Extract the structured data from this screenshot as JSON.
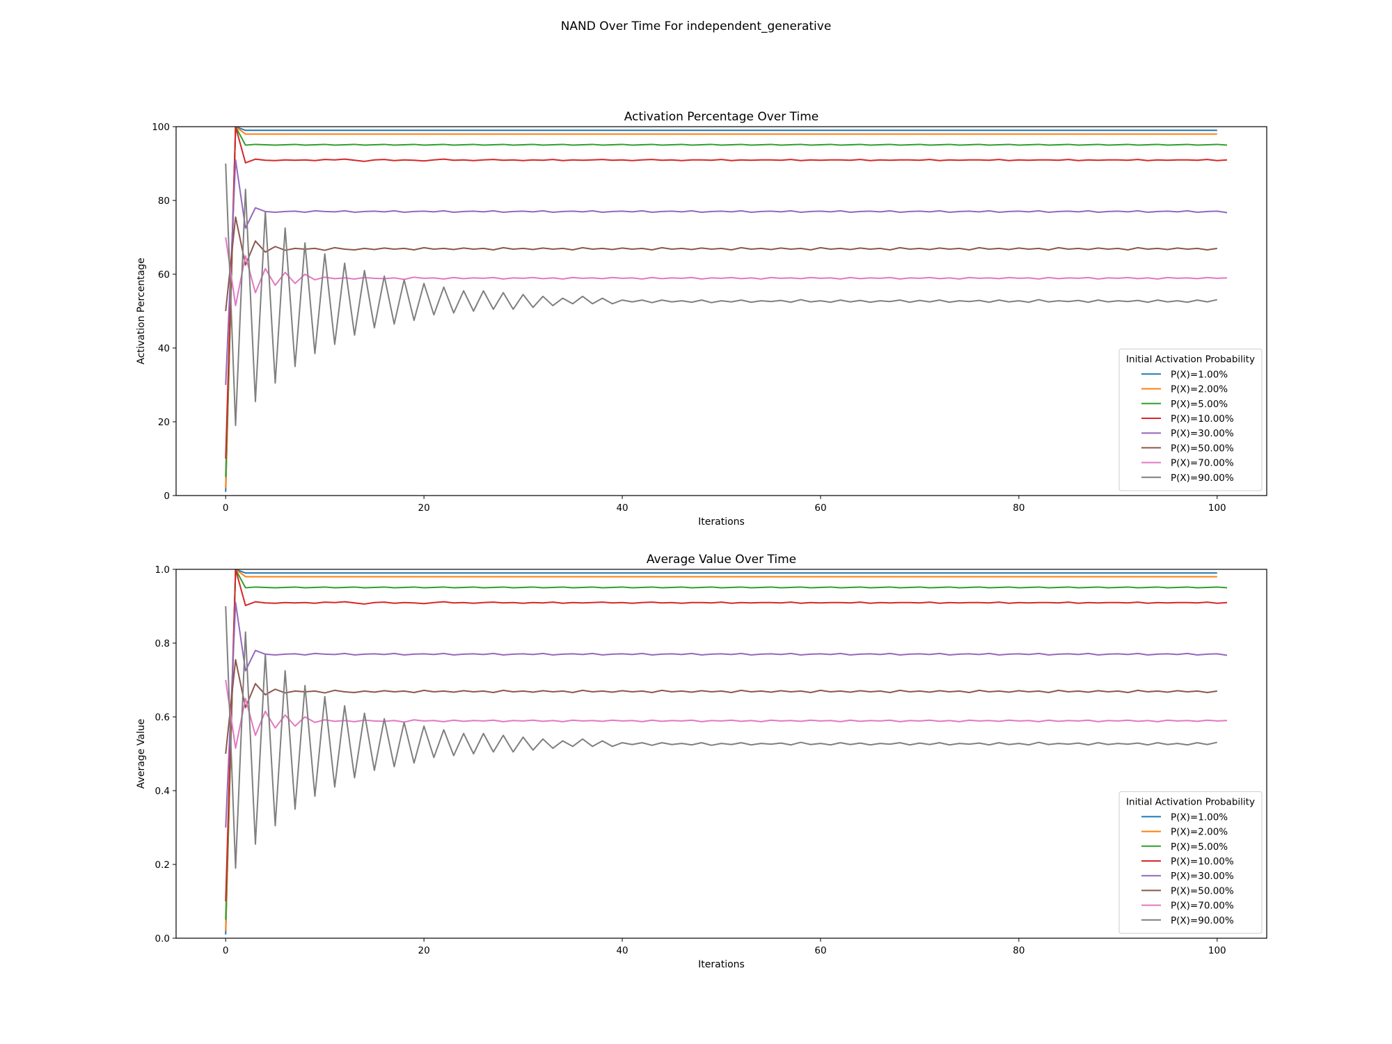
{
  "figure": {
    "suptitle": "NAND Over Time For independent_generative"
  },
  "chart_data": [
    {
      "type": "line",
      "title": "Activation Percentage Over Time",
      "xlabel": "Iterations",
      "ylabel": "Activation Percentage",
      "xlim": [
        -5,
        105
      ],
      "ylim": [
        0,
        100
      ],
      "xticks": [
        0,
        20,
        40,
        60,
        80,
        100
      ],
      "yticks": [
        0,
        20,
        40,
        60,
        80,
        100
      ],
      "xtick_labels": [
        "0",
        "20",
        "40",
        "60",
        "80",
        "100"
      ],
      "ytick_labels": [
        "0",
        "20",
        "40",
        "60",
        "80",
        "100"
      ],
      "grid": false,
      "legend": {
        "title": "Initial Activation Probability",
        "placement": "lower right"
      },
      "x": {
        "start": 0,
        "end": 100,
        "step": 1
      },
      "series": [
        {
          "name": "P(X)=1.00%",
          "color": "#1f77b4",
          "values": [
            1,
            100,
            99,
            99,
            99,
            99,
            99,
            99,
            99,
            99,
            99,
            99,
            99,
            99,
            99,
            99,
            99,
            99,
            99,
            99,
            99,
            99,
            99,
            99,
            99,
            99,
            99,
            99,
            99,
            99,
            99,
            99,
            99,
            99,
            99,
            99,
            99,
            99,
            99,
            99,
            99,
            99,
            99,
            99,
            99,
            99,
            99,
            99,
            99,
            99,
            99,
            99,
            99,
            99,
            99,
            99,
            99,
            99,
            99,
            99,
            99,
            99,
            99,
            99,
            99,
            99,
            99,
            99,
            99,
            99,
            99,
            99,
            99,
            99,
            99,
            99,
            99,
            99,
            99,
            99,
            99,
            99,
            99,
            99,
            99,
            99,
            99,
            99,
            99,
            99,
            99,
            99,
            99,
            99,
            99,
            99,
            99,
            99,
            99,
            99,
            99
          ]
        },
        {
          "name": "P(X)=2.00%",
          "color": "#ff7f0e",
          "values": [
            2,
            100,
            98,
            98,
            98,
            98,
            98,
            98,
            98,
            98,
            98,
            98,
            98,
            98,
            98,
            98,
            98,
            98,
            98,
            98,
            98,
            98,
            98,
            98,
            98,
            98,
            98,
            98,
            98,
            98,
            98,
            98,
            98,
            98,
            98,
            98,
            98,
            98,
            98,
            98,
            98,
            98,
            98,
            98,
            98,
            98,
            98,
            98,
            98,
            98,
            98,
            98,
            98,
            98,
            98,
            98,
            98,
            98,
            98,
            98,
            98,
            98,
            98,
            98,
            98,
            98,
            98,
            98,
            98,
            98,
            98,
            98,
            98,
            98,
            98,
            98,
            98,
            98,
            98,
            98,
            98,
            98,
            98,
            98,
            98,
            98,
            98,
            98,
            98,
            98,
            98,
            98,
            98,
            98,
            98,
            98,
            98,
            98,
            98,
            98,
            98
          ]
        },
        {
          "name": "P(X)=5.00%",
          "color": "#2ca02c",
          "values": [
            5,
            100,
            95,
            95.2,
            95.1,
            95,
            95.1,
            95.2,
            95,
            95.1,
            95.2,
            95,
            95.1,
            95.2,
            95,
            95.1,
            95.2,
            95,
            95.1,
            95.2,
            95,
            95.1,
            95.2,
            95,
            95.1,
            95.2,
            95,
            95.1,
            95.2,
            95,
            95.1,
            95.2,
            95,
            95.1,
            95.2,
            95,
            95.1,
            95.2,
            95,
            95.1,
            95.2,
            95,
            95.1,
            95.2,
            95,
            95.1,
            95.2,
            95,
            95.1,
            95.2,
            95,
            95.1,
            95.2,
            95,
            95.1,
            95.2,
            95,
            95.1,
            95.2,
            95,
            95.1,
            95.2,
            95,
            95.1,
            95.2,
            95,
            95.1,
            95.2,
            95,
            95.1,
            95.2,
            95,
            95.1,
            95.2,
            95,
            95.1,
            95.2,
            95,
            95.1,
            95.2,
            95,
            95.1,
            95.2,
            95,
            95.1,
            95.2,
            95,
            95.1,
            95.2,
            95,
            95.1,
            95.2,
            95,
            95.1,
            95.2,
            95,
            95.1,
            95.2,
            95,
            95.1,
            95.2,
            95
          ]
        },
        {
          "name": "P(X)=10.00%",
          "color": "#d62728",
          "values": [
            10,
            100,
            90.2,
            91.2,
            90.9,
            90.8,
            91,
            90.9,
            91,
            90.8,
            91.1,
            91,
            91.2,
            90.9,
            90.6,
            91,
            91.1,
            90.8,
            91,
            90.9,
            90.7,
            91,
            91.2,
            90.9,
            91,
            90.8,
            91,
            91.1,
            90.9,
            91,
            90.8,
            91,
            90.9,
            91.1,
            90.8,
            91,
            90.9,
            91,
            91.1,
            90.9,
            91,
            90.8,
            91,
            91.1,
            90.9,
            91,
            90.8,
            91,
            91,
            90.9,
            91.1,
            90.8,
            91,
            90.9,
            91,
            91,
            90.9,
            91.1,
            90.8,
            91,
            90.9,
            91,
            91,
            90.9,
            91.1,
            90.8,
            91,
            90.9,
            91,
            91,
            90.9,
            91.1,
            90.8,
            91,
            90.9,
            91,
            91,
            90.9,
            91.1,
            90.8,
            91,
            90.9,
            91,
            91,
            90.9,
            91.1,
            90.8,
            91,
            90.9,
            91,
            91,
            90.9,
            91.1,
            90.8,
            91,
            90.9,
            91,
            91,
            90.9,
            91.1,
            90.8,
            91
          ]
        },
        {
          "name": "P(X)=30.00%",
          "color": "#9467bd",
          "values": [
            30,
            91,
            72.5,
            78,
            77,
            76.8,
            77,
            77.1,
            76.8,
            77.2,
            77,
            76.9,
            77.2,
            76.8,
            77,
            77.1,
            76.9,
            77.2,
            76.8,
            77,
            77.1,
            76.9,
            77.2,
            76.8,
            77,
            77.1,
            76.9,
            77.2,
            76.8,
            77,
            77.1,
            76.9,
            77.2,
            76.8,
            77,
            77.1,
            76.9,
            77.2,
            76.8,
            77,
            77.1,
            76.9,
            77.2,
            76.8,
            77,
            77.1,
            76.9,
            77.2,
            76.8,
            77,
            77.1,
            76.9,
            77.2,
            76.8,
            77,
            77.1,
            76.9,
            77.2,
            76.8,
            77,
            77.1,
            76.9,
            77.2,
            76.8,
            77,
            77.1,
            76.9,
            77.2,
            76.8,
            77,
            77.1,
            76.9,
            77.2,
            76.8,
            77,
            77.1,
            76.9,
            77.2,
            76.8,
            77,
            77.1,
            76.9,
            77.2,
            76.8,
            77,
            77.1,
            76.9,
            77.2,
            76.8,
            77,
            77.1,
            76.9,
            77.2,
            76.8,
            77,
            77.1,
            76.9,
            77.2,
            76.8,
            77,
            77.1,
            76.7
          ]
        },
        {
          "name": "P(X)=50.00%",
          "color": "#8c564b",
          "values": [
            50,
            75.5,
            62.5,
            69,
            66,
            67.5,
            66.5,
            67,
            66.8,
            67,
            66.5,
            67.2,
            66.8,
            66.6,
            67,
            66.7,
            67.1,
            66.8,
            67,
            66.6,
            67.2,
            66.8,
            67,
            66.7,
            67.1,
            66.8,
            67,
            66.6,
            67.2,
            66.8,
            67,
            66.7,
            67.1,
            66.8,
            67,
            66.6,
            67.2,
            66.8,
            67,
            66.7,
            67.1,
            66.8,
            67,
            66.6,
            67.2,
            66.8,
            67,
            66.7,
            67.1,
            66.8,
            67,
            66.6,
            67.2,
            66.8,
            67,
            66.7,
            67.1,
            66.8,
            67,
            66.6,
            67.2,
            66.8,
            67,
            66.7,
            67.1,
            66.8,
            67,
            66.6,
            67.2,
            66.8,
            67,
            66.7,
            67.1,
            66.8,
            67,
            66.6,
            67.2,
            66.8,
            67,
            66.7,
            67.1,
            66.8,
            67,
            66.6,
            67.2,
            66.8,
            67,
            66.7,
            67.1,
            66.8,
            67,
            66.6,
            67.2,
            66.8,
            67,
            66.7,
            67.1,
            66.8,
            67,
            66.6,
            67
          ]
        },
        {
          "name": "P(X)=70.00%",
          "color": "#e377c2",
          "values": [
            70,
            51.5,
            65,
            55,
            61.5,
            57,
            60.5,
            57.5,
            60,
            58.5,
            59.2,
            58.8,
            59,
            58.7,
            59.1,
            58.9,
            58.8,
            59,
            58.6,
            59.2,
            58.9,
            59,
            58.7,
            59.1,
            58.8,
            59,
            58.9,
            59.1,
            58.7,
            59,
            58.9,
            59.1,
            58.8,
            59,
            58.7,
            59.1,
            58.9,
            59,
            58.8,
            59.1,
            58.9,
            59,
            58.7,
            59.1,
            58.8,
            59,
            58.9,
            59.1,
            58.7,
            59,
            58.9,
            59.1,
            58.8,
            59,
            58.7,
            59.1,
            58.9,
            59,
            58.8,
            59.1,
            58.9,
            59,
            58.7,
            59.1,
            58.8,
            59,
            58.9,
            59.1,
            58.7,
            59,
            58.9,
            59.1,
            58.8,
            59,
            58.7,
            59.1,
            58.9,
            59,
            58.8,
            59.1,
            58.9,
            59,
            58.7,
            59.1,
            58.8,
            59,
            58.9,
            59.1,
            58.7,
            59,
            58.9,
            59.1,
            58.8,
            59,
            58.7,
            59.1,
            58.9,
            59,
            58.8,
            59.1,
            58.9,
            59
          ]
        },
        {
          "name": "P(X)=90.00%",
          "color": "#7f7f7f",
          "values": [
            90,
            19,
            83,
            25.5,
            77,
            30.5,
            72.5,
            35,
            68.5,
            38.5,
            65.5,
            41,
            63,
            43.5,
            61,
            45.5,
            59.5,
            46.5,
            58.5,
            47.5,
            57.5,
            49,
            56.5,
            49.5,
            55.5,
            50,
            55.5,
            50.5,
            55,
            50.5,
            54.5,
            51,
            54,
            51.5,
            53.5,
            52,
            54,
            52,
            53.5,
            52,
            53,
            52.5,
            53,
            52.3,
            53,
            52.5,
            52.8,
            52.4,
            53,
            52.3,
            52.8,
            52.5,
            53,
            52.4,
            52.8,
            52.6,
            52.9,
            52.4,
            53.1,
            52.5,
            52.8,
            52.4,
            53,
            52.5,
            52.9,
            52.4,
            52.8,
            52.6,
            53,
            52.4,
            52.9,
            52.5,
            53,
            52.4,
            52.8,
            52.6,
            52.9,
            52.4,
            53,
            52.5,
            52.8,
            52.4,
            53.1,
            52.5,
            52.8,
            52.6,
            52.9,
            52.4,
            53,
            52.5,
            52.8,
            52.6,
            52.9,
            52.4,
            53,
            52.5,
            52.8,
            52.4,
            53,
            52.5,
            53.1
          ]
        }
      ]
    },
    {
      "type": "line",
      "title": "Average Value Over Time",
      "xlabel": "Iterations",
      "ylabel": "Average Value",
      "xlim": [
        -5,
        105
      ],
      "ylim": [
        0,
        1
      ],
      "xticks": [
        0,
        20,
        40,
        60,
        80,
        100
      ],
      "yticks": [
        0,
        0.2,
        0.4,
        0.6,
        0.8,
        1.0
      ],
      "xtick_labels": [
        "0",
        "20",
        "40",
        "60",
        "80",
        "100"
      ],
      "ytick_labels": [
        "0.0",
        "0.2",
        "0.4",
        "0.6",
        "0.8",
        "1.0"
      ],
      "grid": false,
      "legend": {
        "title": "Initial Activation Probability",
        "placement": "lower right"
      },
      "x": {
        "start": 0,
        "end": 100,
        "step": 1
      },
      "scale_from_panel": 0,
      "scale_factor": 0.01,
      "series_names": [
        "P(X)=1.00%",
        "P(X)=2.00%",
        "P(X)=5.00%",
        "P(X)=10.00%",
        "P(X)=30.00%",
        "P(X)=50.00%",
        "P(X)=70.00%",
        "P(X)=90.00%"
      ]
    }
  ]
}
